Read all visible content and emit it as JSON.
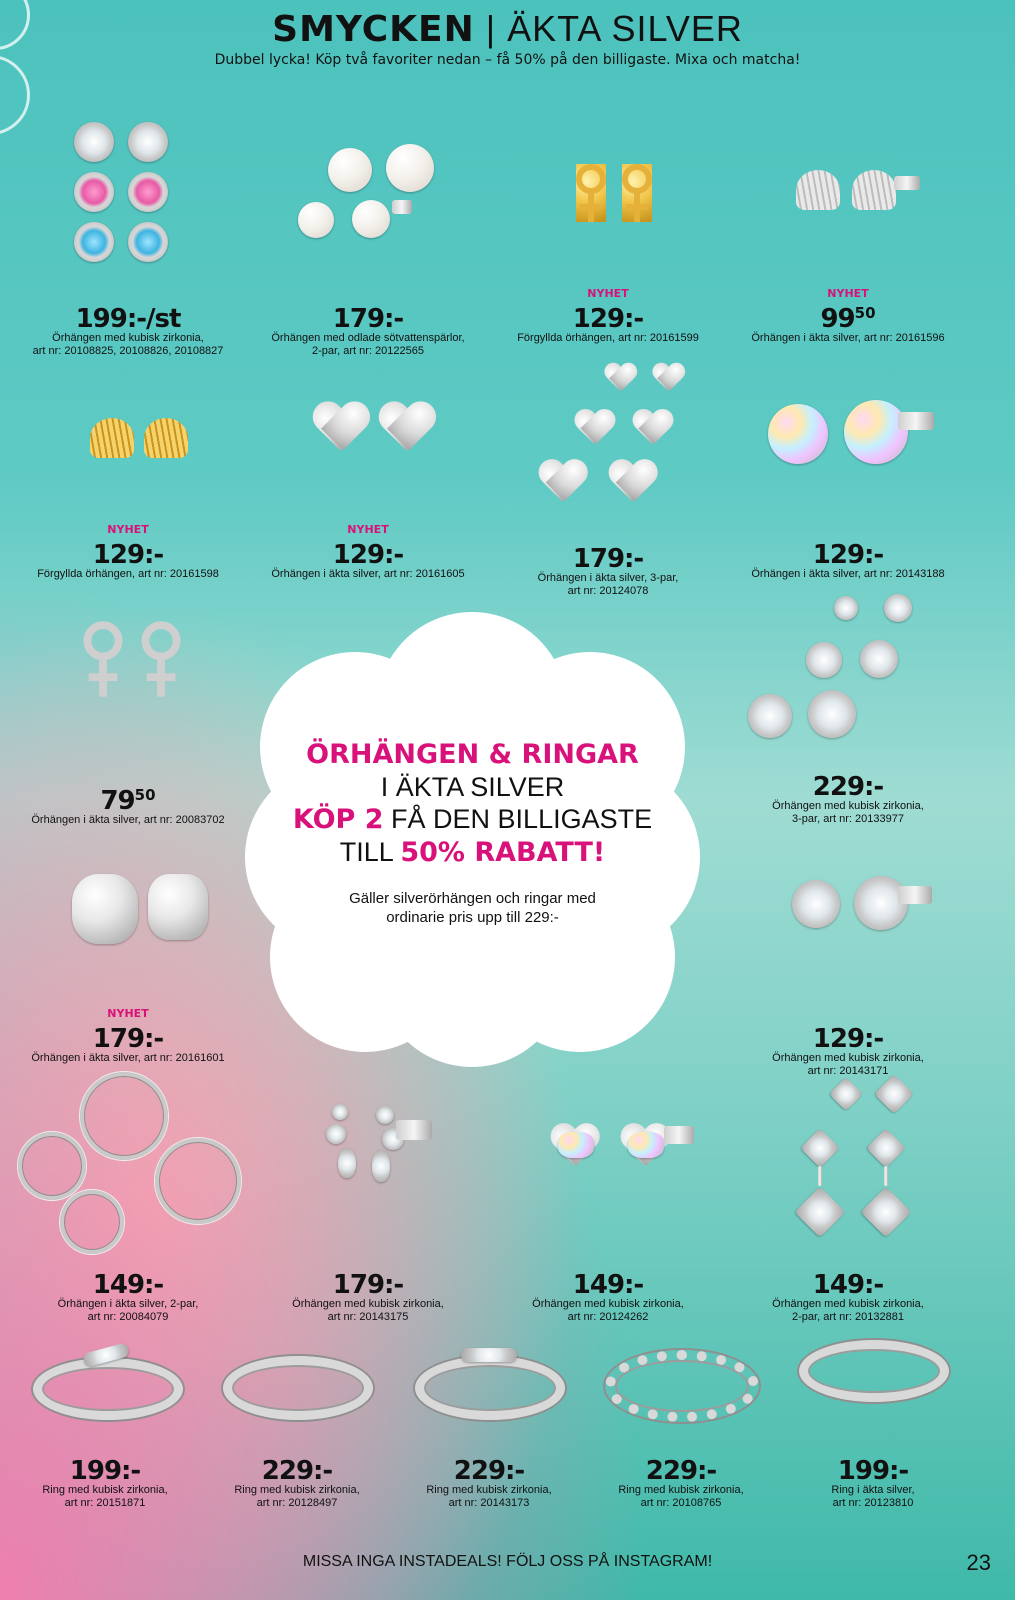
{
  "header": {
    "title_bold": "SMYCKEN",
    "title_light": " | ÄKTA SILVER",
    "subtitle": "Dubbel lycka! Köp två favoriter nedan – få 50% på den billigaste. Mixa och matcha!"
  },
  "promo": {
    "line1": "ÖRHÄNGEN & RINGAR",
    "line2": "I ÄKTA SILVER",
    "line3_bold": "KÖP 2",
    "line3_rest": " FÅ DEN BILLIGASTE",
    "line4_rest": "TILL ",
    "line4_bold": "50% RABATT!",
    "small": "Gäller silverörhängen och ringar med ordinarie pris upp till 229:-"
  },
  "products": [
    {
      "nyhet": "",
      "price": "199:-/st",
      "sup": "",
      "desc1": "Örhängen med kubisk zirkonia,",
      "desc2": "art nr: 20108825, 20108826, 20108827"
    },
    {
      "nyhet": "",
      "price": "179:-",
      "sup": "",
      "desc1": "Örhängen med odlade sötvattenspärlor,",
      "desc2": "2-par, art nr: 20122565"
    },
    {
      "nyhet": "NYHET",
      "price": "129:-",
      "sup": "",
      "desc1": "Förgyllda örhängen, art nr: 20161599",
      "desc2": ""
    },
    {
      "nyhet": "NYHET",
      "price": "99",
      "sup": "50",
      "desc1": "Örhängen i äkta silver, art nr: 20161596",
      "desc2": ""
    },
    {
      "nyhet": "NYHET",
      "price": "129:-",
      "sup": "",
      "desc1": "Förgyllda örhängen, art nr: 20161598",
      "desc2": ""
    },
    {
      "nyhet": "NYHET",
      "price": "129:-",
      "sup": "",
      "desc1": "Örhängen i äkta silver, art nr: 20161605",
      "desc2": ""
    },
    {
      "nyhet": "",
      "price": "179:-",
      "sup": "",
      "desc1": "Örhängen i äkta silver, 3-par,",
      "desc2": "art nr: 20124078"
    },
    {
      "nyhet": "",
      "price": "129:-",
      "sup": "",
      "desc1": "Örhängen i äkta silver, art nr: 20143188",
      "desc2": ""
    },
    {
      "nyhet": "",
      "price": "79",
      "sup": "50",
      "desc1": "Örhängen i äkta silver, art nr: 20083702",
      "desc2": ""
    },
    {
      "nyhet": "",
      "price": "229:-",
      "sup": "",
      "desc1": "Örhängen med kubisk zirkonia,",
      "desc2": "3-par, art nr: 20133977"
    },
    {
      "nyhet": "NYHET",
      "price": "179:-",
      "sup": "",
      "desc1": "Örhängen i äkta silver, art nr: 20161601",
      "desc2": ""
    },
    {
      "nyhet": "",
      "price": "129:-",
      "sup": "",
      "desc1": "Örhängen med kubisk zirkonia,",
      "desc2": "art nr: 20143171"
    },
    {
      "nyhet": "",
      "price": "149:-",
      "sup": "",
      "desc1": "Örhängen i äkta silver, 2-par,",
      "desc2": "art nr: 20084079"
    },
    {
      "nyhet": "",
      "price": "179:-",
      "sup": "",
      "desc1": "Örhängen med kubisk zirkonia,",
      "desc2": "art nr: 20143175"
    },
    {
      "nyhet": "",
      "price": "149:-",
      "sup": "",
      "desc1": "Örhängen med kubisk zirkonia,",
      "desc2": "art nr: 20124262"
    },
    {
      "nyhet": "",
      "price": "149:-",
      "sup": "",
      "desc1": "Örhängen med kubisk zirkonia,",
      "desc2": "2-par, art nr: 20132881"
    },
    {
      "nyhet": "",
      "price": "199:-",
      "sup": "",
      "desc1": "Ring med kubisk zirkonia,",
      "desc2": "art nr: 20151871"
    },
    {
      "nyhet": "",
      "price": "229:-",
      "sup": "",
      "desc1": "Ring med kubisk zirkonia,",
      "desc2": "art nr: 20128497"
    },
    {
      "nyhet": "",
      "price": "229:-",
      "sup": "",
      "desc1": "Ring med kubisk zirkonia,",
      "desc2": "art nr: 20143173"
    },
    {
      "nyhet": "",
      "price": "229:-",
      "sup": "",
      "desc1": "Ring med kubisk zirkonia,",
      "desc2": "art nr: 20108765"
    },
    {
      "nyhet": "",
      "price": "199:-",
      "sup": "",
      "desc1": "Ring i äkta silver,",
      "desc2": "art nr: 20123810"
    }
  ],
  "footer": {
    "text": "MISSA INGA INSTADEALS! FÖLJ OSS PÅ INSTAGRAM!",
    "page": "23"
  },
  "colors": {
    "accent": "#d8127a",
    "background_top": "#4cc2bd",
    "background_corner": "#f07fb0"
  }
}
